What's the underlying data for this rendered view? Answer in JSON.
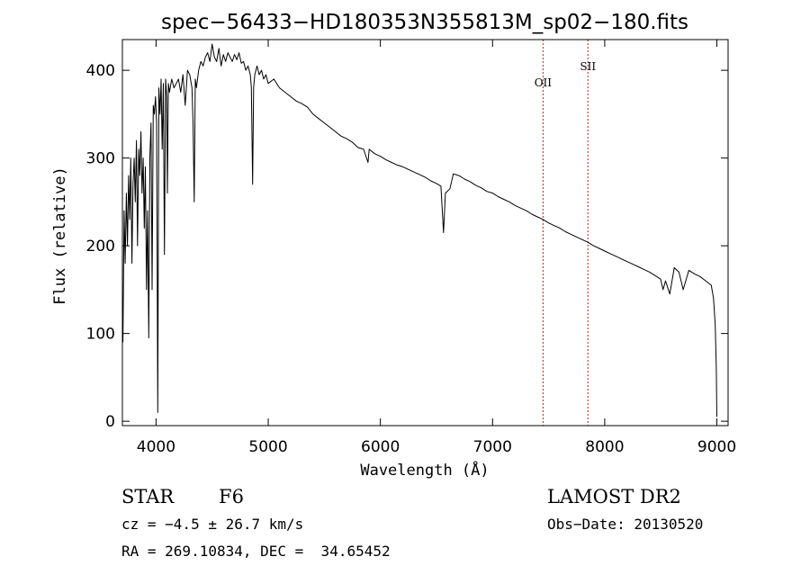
{
  "chart_data": {
    "type": "line",
    "title": "spec−56433−HD180353N355813M_sp02−180.fits",
    "xlabel": "Wavelength (Å)",
    "ylabel": "Flux (relative)",
    "xlim": [
      3700,
      9100
    ],
    "ylim": [
      -5,
      435
    ],
    "xticks": [
      4000,
      5000,
      6000,
      7000,
      8000,
      9000
    ],
    "yticks": [
      0,
      100,
      200,
      300,
      400
    ],
    "line_color": "#000000",
    "marker_color": "#b22222",
    "emission_markers": [
      {
        "label": "OII",
        "x": 7450
      },
      {
        "label": "SII",
        "x": 7850
      }
    ],
    "series": [
      {
        "x": [
          3705,
          3715,
          3725,
          3735,
          3745,
          3755,
          3765,
          3775,
          3785,
          3795,
          3805,
          3815,
          3825,
          3835,
          3845,
          3855,
          3865,
          3875,
          3885,
          3895,
          3905,
          3915,
          3925,
          3935,
          3945,
          3955,
          3965,
          3975,
          3985,
          3995,
          4005,
          4015,
          4025,
          4035,
          4045,
          4055,
          4065,
          4075,
          4085,
          4095,
          4101,
          4110,
          4120,
          4140,
          4160,
          4180,
          4200,
          4220,
          4240,
          4260,
          4280,
          4300,
          4320,
          4330,
          4340,
          4350,
          4360,
          4380,
          4400,
          4420,
          4440,
          4460,
          4480,
          4500,
          4520,
          4540,
          4560,
          4580,
          4600,
          4620,
          4640,
          4660,
          4680,
          4700,
          4720,
          4740,
          4760,
          4780,
          4800,
          4820,
          4840,
          4850,
          4861,
          4870,
          4880,
          4900,
          4920,
          4940,
          4960,
          4980,
          5000,
          5050,
          5100,
          5150,
          5200,
          5250,
          5300,
          5350,
          5400,
          5450,
          5500,
          5550,
          5600,
          5650,
          5700,
          5750,
          5800,
          5850,
          5890,
          5900,
          5950,
          6000,
          6050,
          6100,
          6150,
          6200,
          6250,
          6300,
          6350,
          6400,
          6450,
          6500,
          6540,
          6563,
          6580,
          6620,
          6650,
          6700,
          6750,
          6800,
          6850,
          6900,
          6950,
          7000,
          7050,
          7100,
          7150,
          7200,
          7250,
          7300,
          7350,
          7400,
          7450,
          7500,
          7550,
          7600,
          7650,
          7700,
          7750,
          7800,
          7850,
          7900,
          7950,
          8000,
          8050,
          8100,
          8150,
          8200,
          8250,
          8300,
          8350,
          8400,
          8450,
          8498,
          8520,
          8542,
          8580,
          8620,
          8662,
          8700,
          8750,
          8800,
          8850,
          8900,
          8950,
          8970,
          8985,
          8995,
          9000
        ],
        "values": [
          90,
          240,
          180,
          260,
          200,
          280,
          230,
          300,
          180,
          270,
          300,
          250,
          320,
          200,
          310,
          280,
          330,
          260,
          300,
          220,
          290,
          150,
          240,
          95,
          300,
          340,
          150,
          360,
          350,
          370,
          340,
          10,
          380,
          350,
          390,
          310,
          385,
          190,
          390,
          370,
          260,
          385,
          375,
          390,
          380,
          385,
          390,
          375,
          395,
          360,
          400,
          395,
          380,
          340,
          250,
          390,
          380,
          400,
          410,
          405,
          415,
          420,
          410,
          430,
          415,
          410,
          425,
          405,
          418,
          410,
          420,
          415,
          410,
          418,
          412,
          420,
          408,
          410,
          400,
          405,
          395,
          380,
          270,
          380,
          395,
          405,
          395,
          400,
          390,
          395,
          385,
          390,
          380,
          375,
          370,
          365,
          362,
          358,
          350,
          345,
          340,
          335,
          330,
          325,
          322,
          318,
          312,
          310,
          295,
          310,
          305,
          302,
          298,
          295,
          292,
          290,
          287,
          284,
          281,
          278,
          274,
          271,
          268,
          215,
          260,
          265,
          282,
          280,
          276,
          273,
          269,
          266,
          262,
          260,
          256,
          253,
          250,
          246,
          243,
          240,
          236,
          233,
          230,
          226,
          223,
          220,
          216,
          213,
          210,
          207,
          204,
          200,
          197,
          194,
          191,
          188,
          185,
          182,
          179,
          176,
          173,
          170,
          166,
          162,
          150,
          160,
          145,
          175,
          170,
          150,
          172,
          168,
          165,
          160,
          155,
          140,
          110,
          60,
          5
        ]
      }
    ]
  },
  "footer": {
    "object_type": "STAR",
    "subclass": "F6",
    "redshift": "cz = −4.5 ± 26.7 km/s",
    "coords": "RA = 269.10834, DEC =  34.65452",
    "survey": "LAMOST DR2",
    "obs_date": "Obs−Date: 20130520"
  }
}
